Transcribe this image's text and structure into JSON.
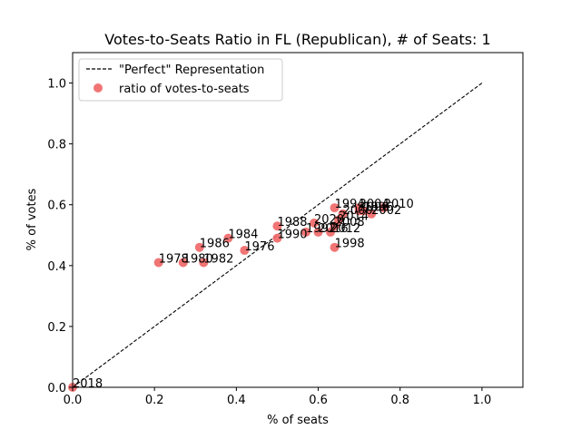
{
  "chart_data": {
    "type": "scatter",
    "title": "Votes-to-Seats Ratio in FL (Republican), # of Seats: 1",
    "xlabel": "% of seats",
    "ylabel": "% of votes",
    "xlim": [
      0.0,
      1.1
    ],
    "ylim": [
      0.0,
      1.1
    ],
    "xticks": [
      "0.0",
      "0.2",
      "0.4",
      "0.6",
      "0.8",
      "1.0"
    ],
    "yticks": [
      "0.0",
      "0.2",
      "0.4",
      "0.6",
      "0.8",
      "1.0"
    ],
    "grid": false,
    "legend_position": "top-left",
    "legend": [
      {
        "label": "\"Perfect\" Representation",
        "style": "dashed-line",
        "color": "#000000"
      },
      {
        "label": "ratio of votes-to-seats",
        "style": "marker",
        "color": "#ef6666"
      }
    ],
    "reference_line": {
      "x": [
        0.0,
        1.0
      ],
      "y": [
        0.0,
        1.0
      ]
    },
    "points": [
      {
        "label": "1978",
        "x": 0.21,
        "y": 0.41
      },
      {
        "label": "1980",
        "x": 0.27,
        "y": 0.41
      },
      {
        "label": "1982",
        "x": 0.32,
        "y": 0.41
      },
      {
        "label": "1986",
        "x": 0.31,
        "y": 0.46
      },
      {
        "label": "1984",
        "x": 0.38,
        "y": 0.49
      },
      {
        "label": "1976",
        "x": 0.42,
        "y": 0.45
      },
      {
        "label": "1988",
        "x": 0.5,
        "y": 0.53
      },
      {
        "label": "1990",
        "x": 0.5,
        "y": 0.49
      },
      {
        "label": "1992",
        "x": 0.57,
        "y": 0.51
      },
      {
        "label": "2016",
        "x": 0.6,
        "y": 0.51
      },
      {
        "label": "2020",
        "x": 0.59,
        "y": 0.54
      },
      {
        "label": "2012",
        "x": 0.63,
        "y": 0.51
      },
      {
        "label": "2008",
        "x": 0.64,
        "y": 0.53
      },
      {
        "label": "2014",
        "x": 0.65,
        "y": 0.55
      },
      {
        "label": "1998",
        "x": 0.64,
        "y": 0.46
      },
      {
        "label": "1994",
        "x": 0.64,
        "y": 0.59
      },
      {
        "label": "2000",
        "x": 0.66,
        "y": 0.57
      },
      {
        "label": "2006",
        "x": 0.7,
        "y": 0.58
      },
      {
        "label": "2004",
        "x": 0.7,
        "y": 0.59
      },
      {
        "label": "1996",
        "x": 0.71,
        "y": 0.58
      },
      {
        "label": "2002",
        "x": 0.73,
        "y": 0.57
      },
      {
        "label": "2010",
        "x": 0.76,
        "y": 0.59
      },
      {
        "label": "2018",
        "x": 0.0,
        "y": 0.0
      }
    ],
    "marker_color": "#ef6666"
  }
}
